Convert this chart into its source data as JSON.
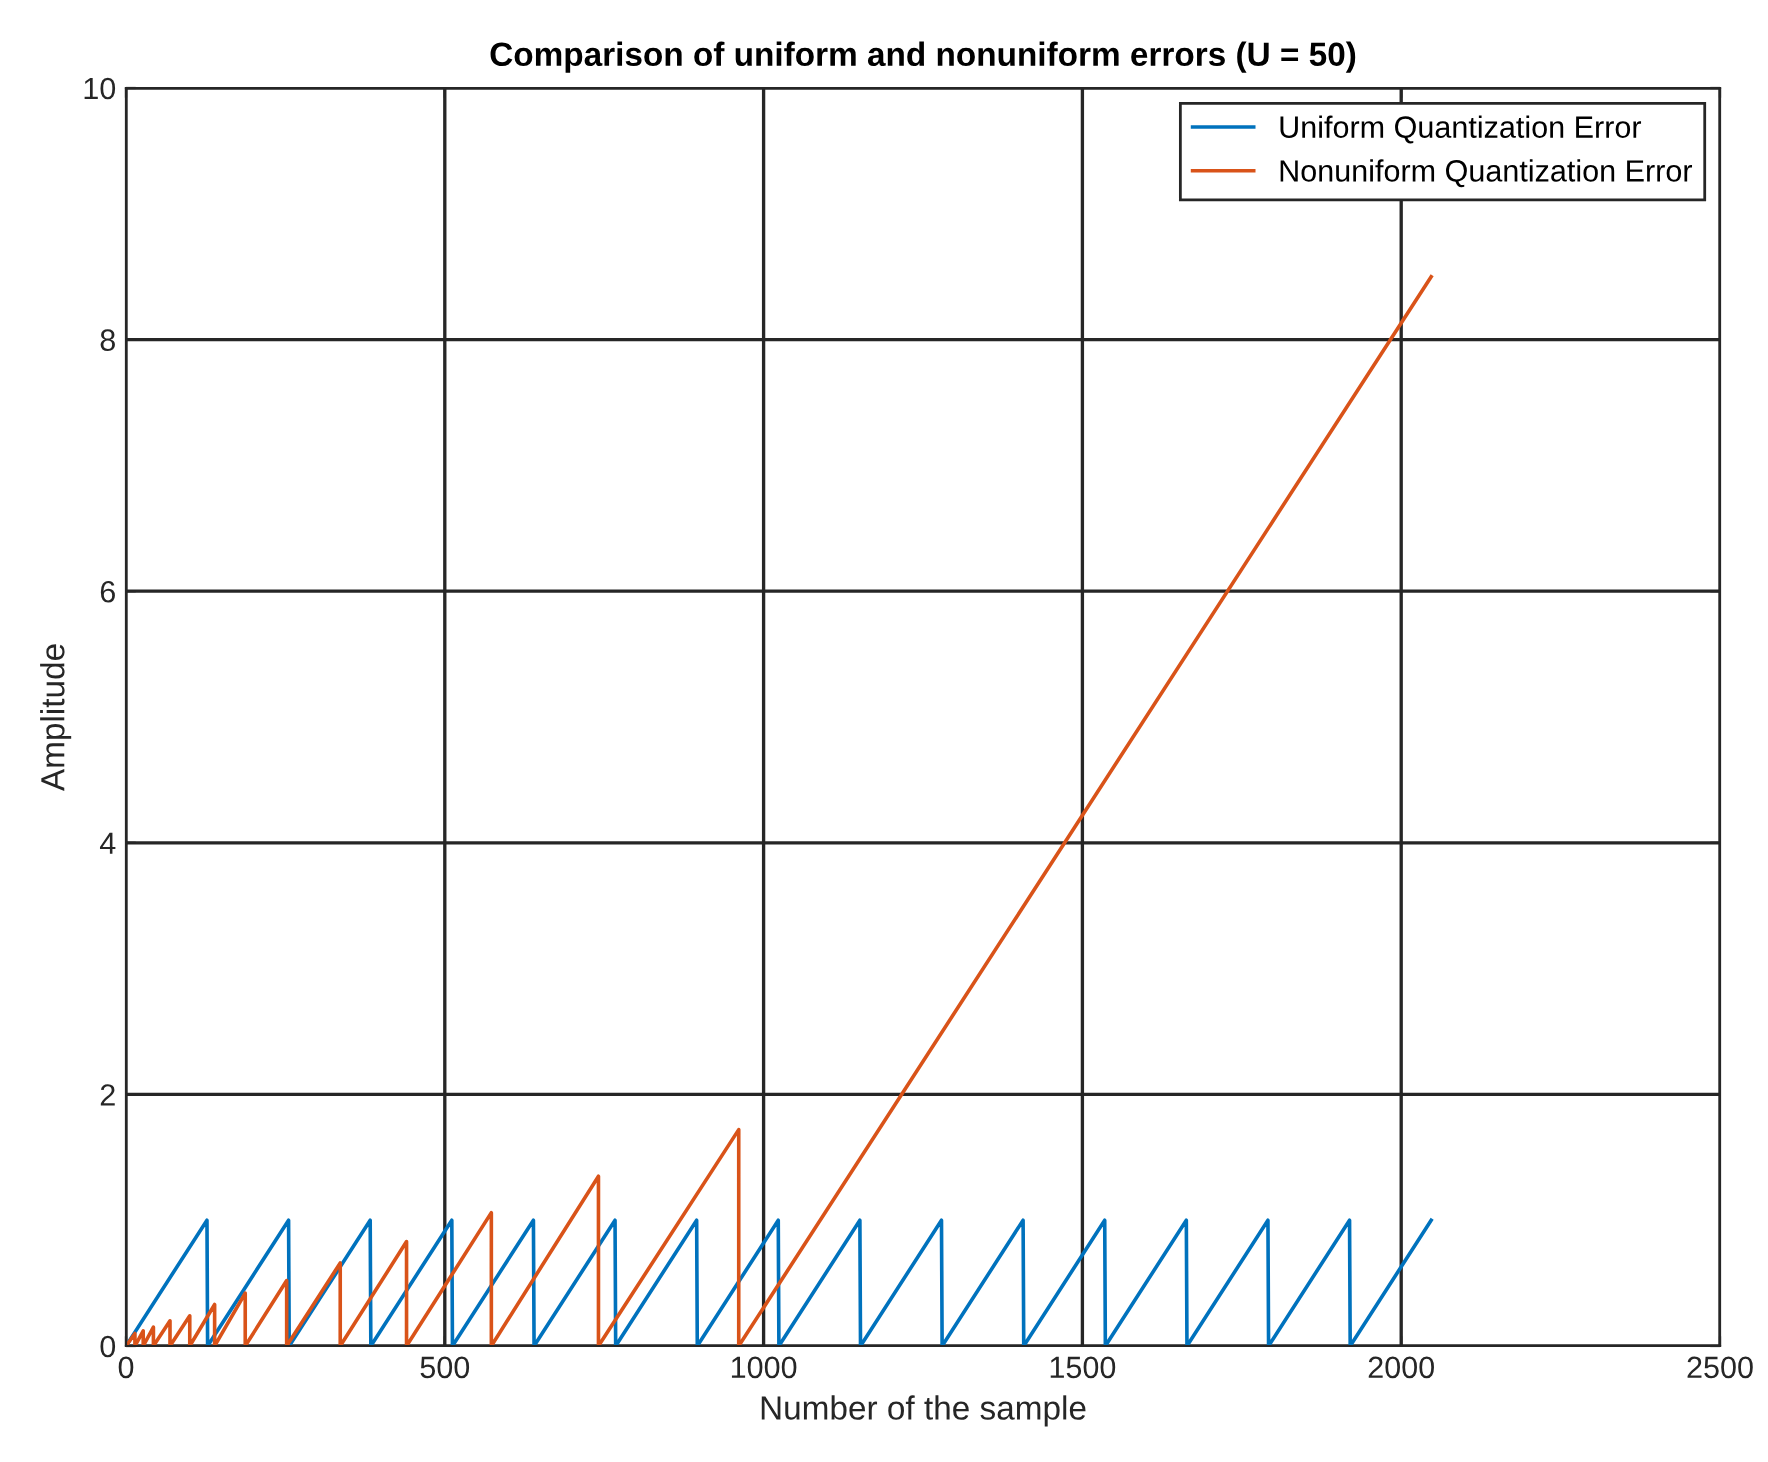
{
  "chart_data": {
    "type": "line",
    "title": "Comparison of uniform and nonuniform errors (U = 50)",
    "xlabel": "Number of the sample",
    "ylabel": "Amplitude",
    "xlim": [
      0,
      2500
    ],
    "ylim": [
      0,
      10
    ],
    "xticks": [
      0,
      500,
      1000,
      1500,
      2000,
      2500
    ],
    "yticks": [
      0,
      2,
      4,
      6,
      8,
      10
    ],
    "grid": true,
    "legend": "top right",
    "series": [
      {
        "name": "Uniform Quantization Error",
        "color": "#0072bd",
        "x": [
          0,
          127,
          128,
          255,
          256,
          383,
          384,
          511,
          512,
          639,
          640,
          767,
          768,
          895,
          896,
          1023,
          1024,
          1151,
          1152,
          1279,
          1280,
          1407,
          1408,
          1535,
          1536,
          1663,
          1664,
          1791,
          1792,
          1919,
          1920,
          2047
        ],
        "values": [
          0,
          1,
          0,
          1,
          0,
          1,
          0,
          1,
          0,
          1,
          0,
          1,
          0,
          1,
          0,
          1,
          0,
          1,
          0,
          1,
          0,
          1,
          0,
          1,
          0,
          1,
          0,
          1,
          0,
          1,
          0,
          1
        ]
      },
      {
        "name": "Nonuniform Quantization Error",
        "color": "#d95319",
        "x": [
          0,
          14,
          14,
          27,
          27,
          43,
          43,
          69,
          69,
          100,
          100,
          139,
          139,
          187,
          187,
          252,
          252,
          336,
          336,
          440,
          440,
          573,
          573,
          741,
          741,
          961,
          961,
          2047
        ],
        "values": [
          0,
          0.1,
          0,
          0.12,
          0,
          0.15,
          0,
          0.2,
          0,
          0.24,
          0,
          0.33,
          0,
          0.42,
          0,
          0.52,
          0,
          0.66,
          0,
          0.83,
          0,
          1.06,
          0,
          1.35,
          0,
          1.72,
          0,
          8.5
        ]
      }
    ]
  }
}
